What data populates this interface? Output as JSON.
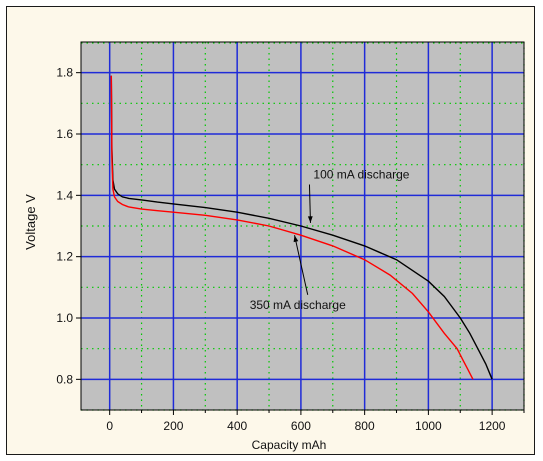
{
  "chart_data": {
    "type": "line",
    "xlabel": "Capacity mAh",
    "ylabel": "Voltage V",
    "xlim": [
      -90,
      1300
    ],
    "ylim": [
      0.7,
      1.9
    ],
    "xticks": [
      0,
      200,
      400,
      600,
      800,
      1000,
      1200
    ],
    "yticks": [
      0.8,
      1.0,
      1.2,
      1.4,
      1.6,
      1.8
    ],
    "ytick_labels": [
      "0.8",
      "1.0",
      "1.2",
      "1.4",
      "1.6",
      "1.8"
    ],
    "grid": true,
    "colors": {
      "plot_background": "#c0c0c0",
      "major_grid": "#1f2bd8",
      "minor_grid": "#00c800",
      "frame_background": "#fdf8ea"
    },
    "series": [
      {
        "color": "#000000",
        "x": [
          5,
          7,
          10,
          15,
          25,
          40,
          60,
          100,
          150,
          200,
          300,
          400,
          500,
          600,
          700,
          800,
          900,
          1000,
          1050,
          1100,
          1130,
          1160,
          1180,
          1192,
          1200
        ],
        "y": [
          1.79,
          1.55,
          1.45,
          1.42,
          1.405,
          1.395,
          1.39,
          1.385,
          1.378,
          1.372,
          1.36,
          1.345,
          1.325,
          1.3,
          1.27,
          1.235,
          1.19,
          1.12,
          1.07,
          1.0,
          0.95,
          0.89,
          0.85,
          0.82,
          0.8
        ]
      },
      {
        "color": "#ff0000",
        "x": [
          5,
          7,
          10,
          15,
          25,
          40,
          60,
          100,
          150,
          200,
          300,
          400,
          500,
          600,
          700,
          800,
          880,
          950,
          1000,
          1050,
          1090,
          1110,
          1125,
          1135,
          1140
        ],
        "y": [
          1.79,
          1.52,
          1.42,
          1.395,
          1.38,
          1.37,
          1.362,
          1.355,
          1.35,
          1.345,
          1.335,
          1.32,
          1.3,
          1.27,
          1.235,
          1.19,
          1.14,
          1.08,
          1.02,
          0.95,
          0.9,
          0.86,
          0.83,
          0.81,
          0.8
        ]
      }
    ],
    "annotations": [
      {
        "text": "100 mA discharge",
        "x": 790,
        "y": 1.455,
        "arrow_to": [
          630,
          1.31
        ]
      },
      {
        "text": "350 mA discharge",
        "x": 590,
        "y": 1.03,
        "arrow_to": [
          580,
          1.27
        ]
      }
    ]
  }
}
